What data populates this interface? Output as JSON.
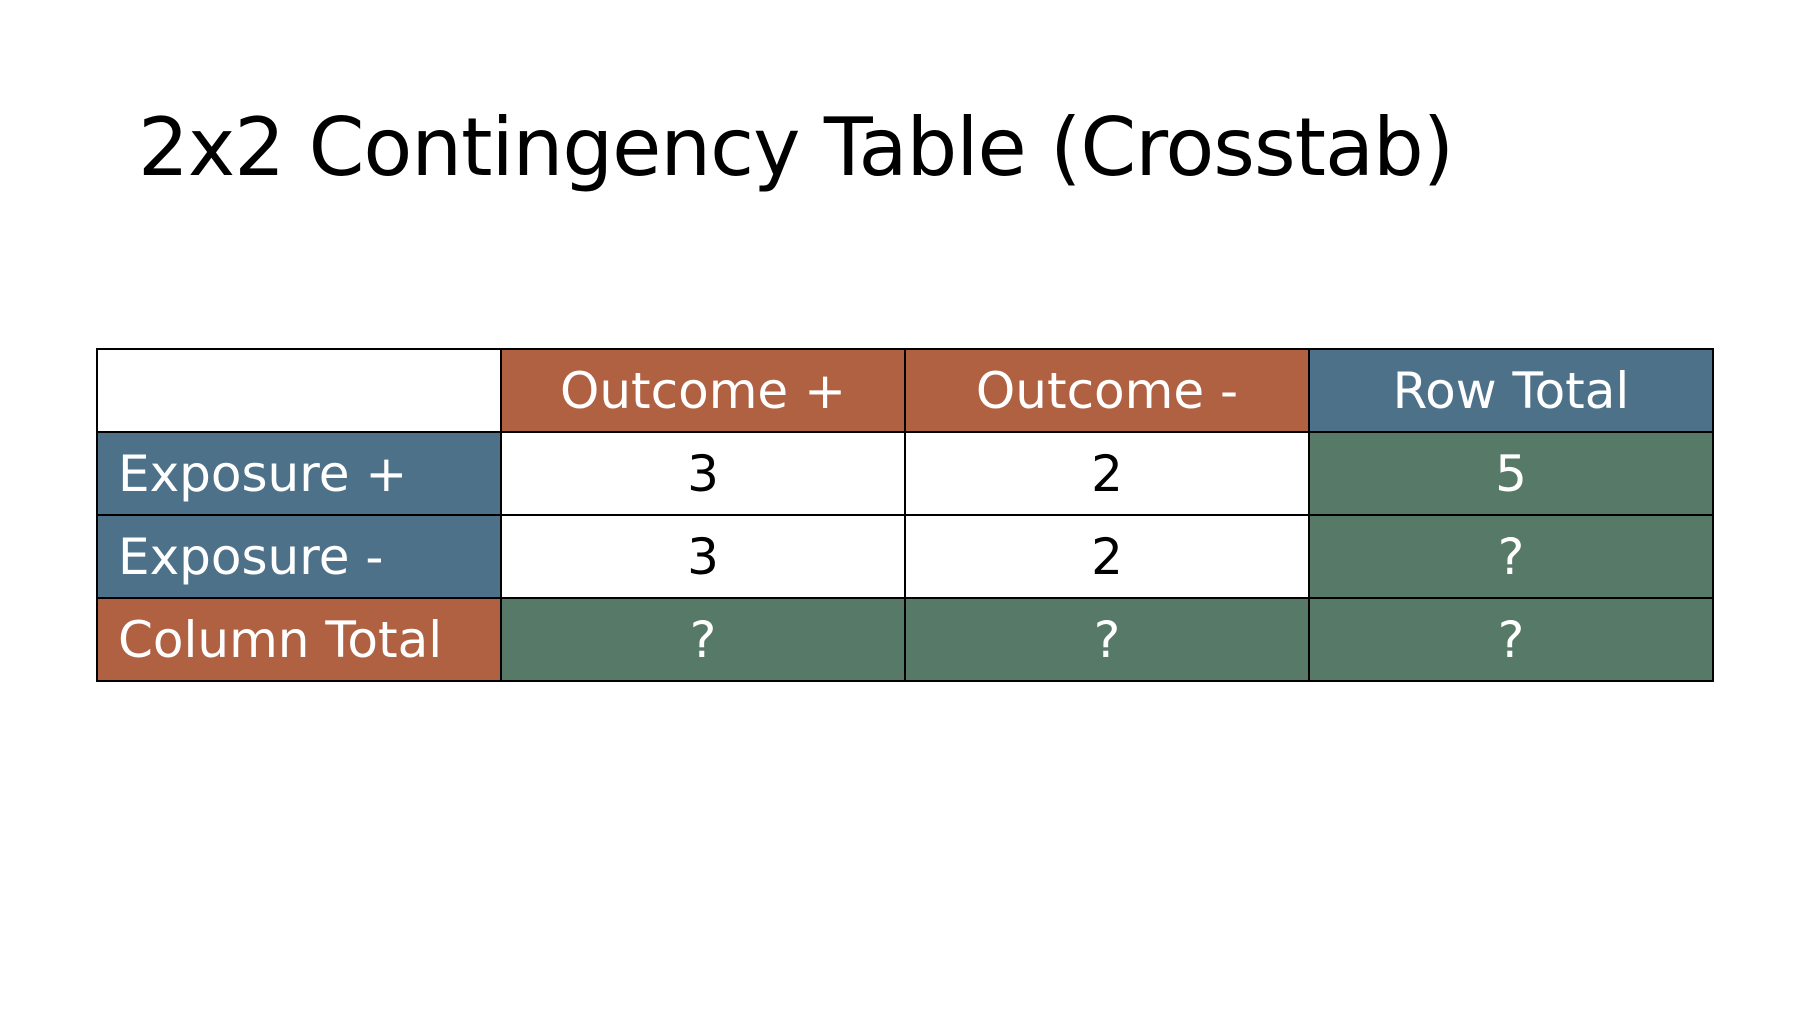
{
  "title": "2x2 Contingency Table (Crosstab)",
  "colors": {
    "outcome_header": "#b06142",
    "exposure_header": "#4d7189",
    "totals": "#577a68",
    "cell_text_dark": "#000000",
    "cell_text_light": "#ffffff"
  },
  "table": {
    "header": {
      "corner": "",
      "outcome_pos": "Outcome +",
      "outcome_neg": "Outcome -",
      "row_total": "Row Total"
    },
    "rows": [
      {
        "label": "Exposure +",
        "outcome_pos": "3",
        "outcome_neg": "2",
        "row_total": "5"
      },
      {
        "label": "Exposure -",
        "outcome_pos": "3",
        "outcome_neg": "2",
        "row_total": "?"
      },
      {
        "label": "Column Total",
        "outcome_pos": "?",
        "outcome_neg": "?",
        "row_total": "?"
      }
    ]
  }
}
